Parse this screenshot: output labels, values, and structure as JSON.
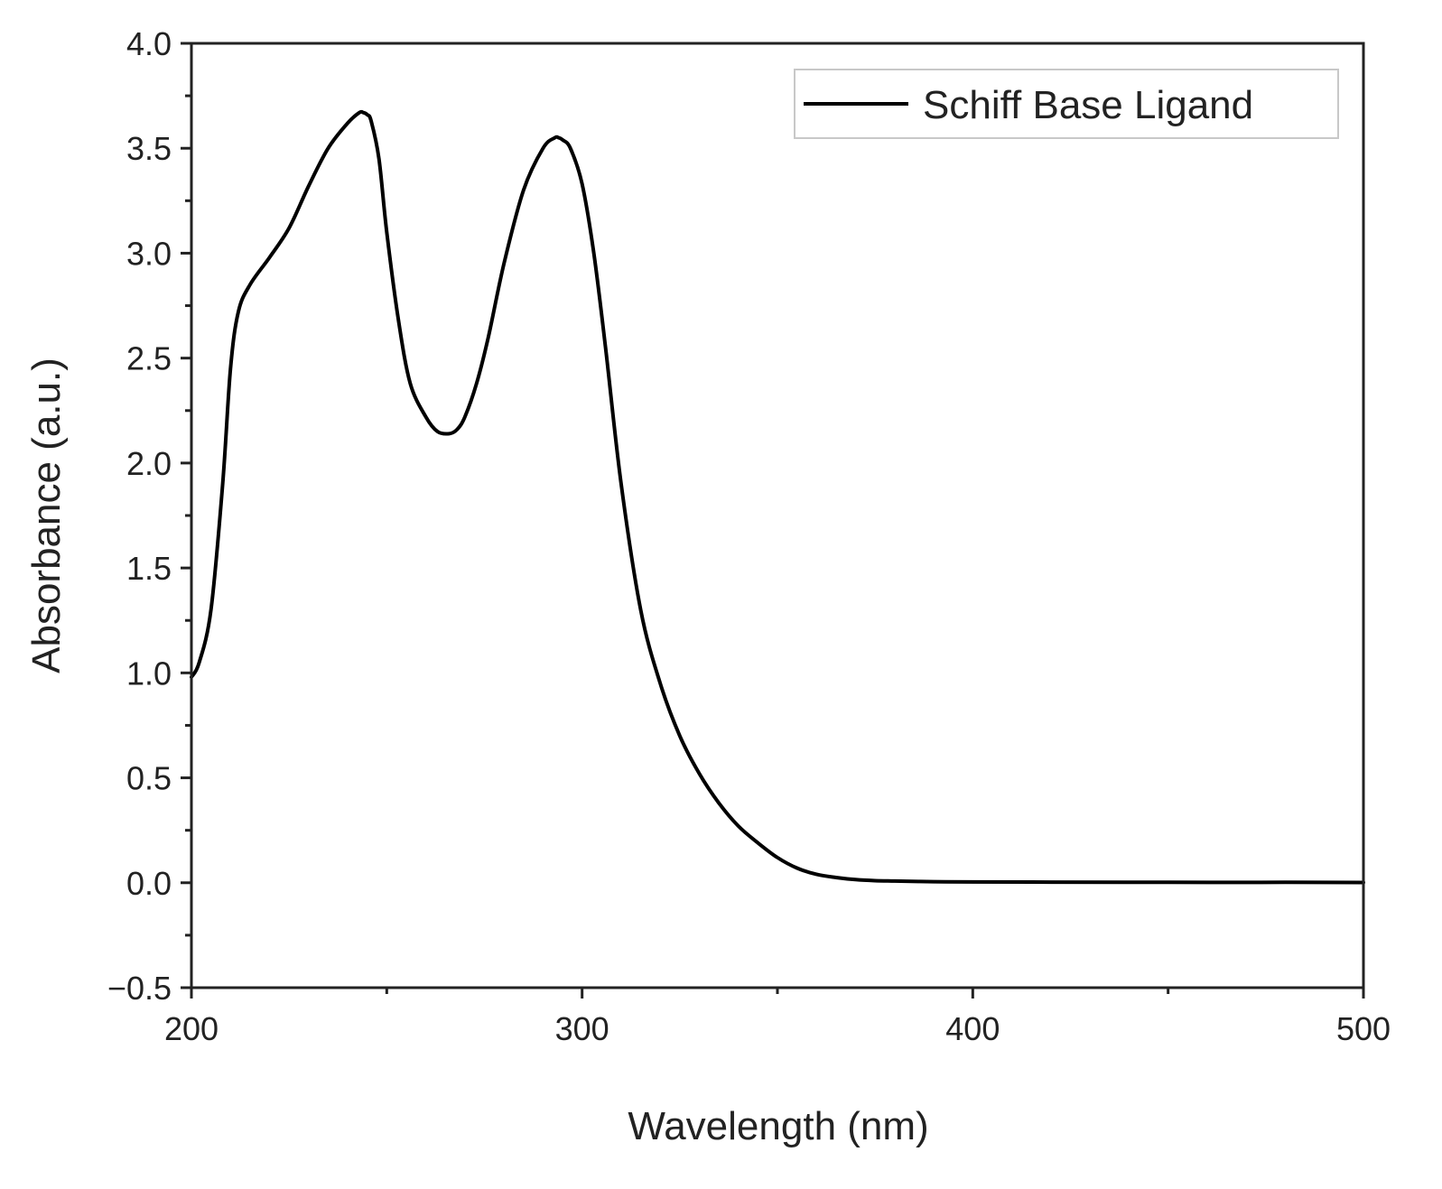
{
  "chart_data": {
    "type": "line",
    "title": "",
    "xlabel": "Wavelength (nm)",
    "ylabel": "Absorbance (a.u.)",
    "xlim": [
      200,
      500
    ],
    "ylim": [
      -0.5,
      4.0
    ],
    "x_ticks": [
      200,
      300,
      400,
      500
    ],
    "x_tick_labels": [
      "200",
      "300",
      "400",
      "500"
    ],
    "y_ticks": [
      -0.5,
      0.0,
      0.5,
      1.0,
      1.5,
      2.0,
      2.5,
      3.0,
      3.5,
      4.0
    ],
    "y_tick_labels": [
      "−0.5",
      "0.0",
      "0.5",
      "1.0",
      "1.5",
      "2.0",
      "2.5",
      "3.0",
      "3.5",
      "4.0"
    ],
    "grid": false,
    "legend": {
      "position": "top-right"
    },
    "series": [
      {
        "name": "Schiff Base Ligand",
        "color": "#000000",
        "x": [
          200,
          202,
          205,
          208,
          210,
          212,
          215,
          220,
          225,
          230,
          235,
          240,
          243,
          244,
          245,
          246,
          248,
          250,
          253,
          256,
          260,
          263,
          266,
          268,
          270,
          273,
          276,
          280,
          285,
          290,
          293,
          294,
          295,
          297,
          300,
          303,
          306,
          310,
          315,
          320,
          325,
          330,
          335,
          340,
          345,
          350,
          355,
          360,
          365,
          370,
          375,
          380,
          390,
          400,
          420,
          450,
          480,
          500
        ],
        "y": [
          0.98,
          1.05,
          1.3,
          1.9,
          2.45,
          2.72,
          2.85,
          2.98,
          3.12,
          3.32,
          3.5,
          3.62,
          3.67,
          3.67,
          3.66,
          3.63,
          3.45,
          3.1,
          2.68,
          2.38,
          2.22,
          2.15,
          2.14,
          2.16,
          2.22,
          2.38,
          2.6,
          2.95,
          3.3,
          3.5,
          3.55,
          3.55,
          3.54,
          3.5,
          3.33,
          3.0,
          2.55,
          1.9,
          1.3,
          0.95,
          0.7,
          0.52,
          0.38,
          0.27,
          0.19,
          0.12,
          0.07,
          0.04,
          0.025,
          0.015,
          0.01,
          0.008,
          0.005,
          0.004,
          0.003,
          0.002,
          0.002,
          0.001
        ]
      }
    ]
  }
}
